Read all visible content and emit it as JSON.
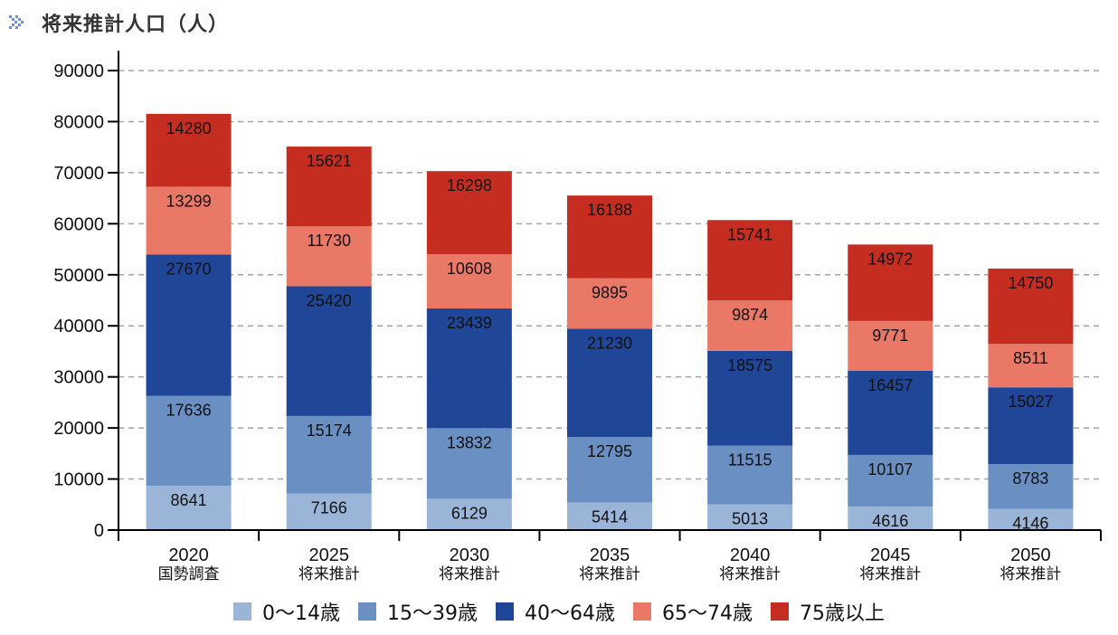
{
  "header": {
    "title": "将来推計人口（人）",
    "icon": "double-chevron-right-icon"
  },
  "chart_data": {
    "type": "bar",
    "stacked": true,
    "title": "将来推計人口（人）",
    "xlabel": "",
    "ylabel": "",
    "ylim": [
      0,
      90000
    ],
    "yticks": [
      0,
      10000,
      20000,
      30000,
      40000,
      50000,
      60000,
      70000,
      80000,
      90000
    ],
    "grid": true,
    "legend_position": "bottom",
    "categories": [
      {
        "year": "2020",
        "label": "国勢調査"
      },
      {
        "year": "2025",
        "label": "将来推計"
      },
      {
        "year": "2030",
        "label": "将来推計"
      },
      {
        "year": "2035",
        "label": "将来推計"
      },
      {
        "year": "2040",
        "label": "将来推計"
      },
      {
        "year": "2045",
        "label": "将来推計"
      },
      {
        "year": "2050",
        "label": "将来推計"
      }
    ],
    "series": [
      {
        "name": "0〜14歳",
        "color": "#9bb5d9",
        "values": [
          8641,
          7166,
          6129,
          5414,
          5013,
          4616,
          4146
        ]
      },
      {
        "name": "15〜39歳",
        "color": "#6a8fc2",
        "values": [
          17636,
          15174,
          13832,
          12795,
          11515,
          10107,
          8783
        ]
      },
      {
        "name": "40〜64歳",
        "color": "#1f4697",
        "values": [
          27670,
          25420,
          23439,
          21230,
          18575,
          16457,
          15027
        ]
      },
      {
        "name": "65〜74歳",
        "color": "#e97867",
        "values": [
          13299,
          11730,
          10608,
          9895,
          9874,
          9771,
          8511
        ]
      },
      {
        "name": "75歳以上",
        "color": "#c42d20",
        "values": [
          14280,
          15621,
          16298,
          16188,
          15741,
          14972,
          14750
        ]
      }
    ]
  }
}
